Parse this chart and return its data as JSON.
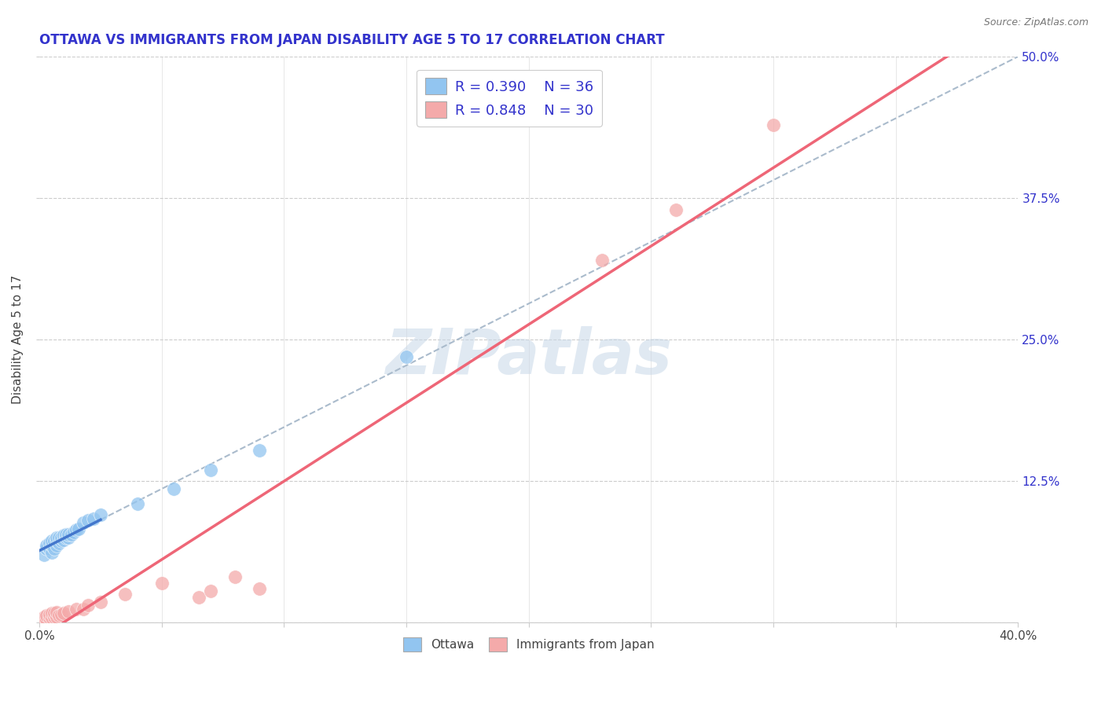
{
  "title": "OTTAWA VS IMMIGRANTS FROM JAPAN DISABILITY AGE 5 TO 17 CORRELATION CHART",
  "source": "Source: ZipAtlas.com",
  "ylabel": "Disability Age 5 to 17",
  "xlim": [
    0.0,
    0.4
  ],
  "ylim": [
    0.0,
    0.5
  ],
  "ottawa_R": 0.39,
  "ottawa_N": 36,
  "japan_R": 0.848,
  "japan_N": 30,
  "ottawa_color": "#92C5F0",
  "japan_color": "#F4AAAA",
  "title_color": "#3333cc",
  "legend_text_color": "#3333cc",
  "watermark": "ZIPatlas",
  "ottawa_x": [
    0.002,
    0.003,
    0.003,
    0.004,
    0.004,
    0.005,
    0.005,
    0.005,
    0.006,
    0.006,
    0.007,
    0.007,
    0.007,
    0.008,
    0.008,
    0.009,
    0.009,
    0.01,
    0.01,
    0.011,
    0.011,
    0.012,
    0.012,
    0.013,
    0.014,
    0.015,
    0.016,
    0.018,
    0.02,
    0.022,
    0.025,
    0.04,
    0.055,
    0.07,
    0.09,
    0.15
  ],
  "ottawa_y": [
    0.06,
    0.065,
    0.068,
    0.065,
    0.07,
    0.062,
    0.068,
    0.072,
    0.065,
    0.072,
    0.068,
    0.072,
    0.075,
    0.07,
    0.075,
    0.072,
    0.075,
    0.073,
    0.077,
    0.075,
    0.078,
    0.075,
    0.078,
    0.078,
    0.08,
    0.082,
    0.083,
    0.088,
    0.09,
    0.092,
    0.095,
    0.105,
    0.118,
    0.135,
    0.152,
    0.235
  ],
  "japan_x": [
    0.001,
    0.002,
    0.002,
    0.003,
    0.003,
    0.004,
    0.004,
    0.005,
    0.005,
    0.006,
    0.006,
    0.007,
    0.007,
    0.008,
    0.009,
    0.01,
    0.012,
    0.015,
    0.018,
    0.02,
    0.025,
    0.035,
    0.05,
    0.065,
    0.07,
    0.08,
    0.09,
    0.23,
    0.26,
    0.3
  ],
  "japan_y": [
    0.002,
    0.003,
    0.005,
    0.003,
    0.006,
    0.004,
    0.007,
    0.004,
    0.008,
    0.005,
    0.008,
    0.005,
    0.009,
    0.006,
    0.007,
    0.008,
    0.01,
    0.012,
    0.012,
    0.015,
    0.018,
    0.025,
    0.035,
    0.022,
    0.028,
    0.04,
    0.03,
    0.32,
    0.365,
    0.44
  ]
}
